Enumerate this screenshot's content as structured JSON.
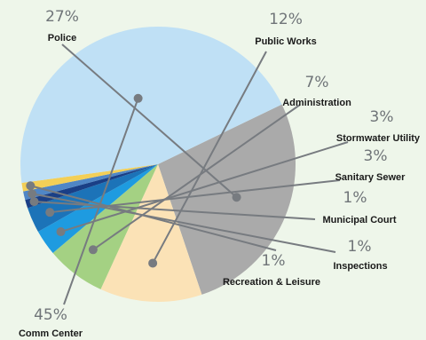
{
  "chart_data": {
    "type": "pie",
    "title": "",
    "slices": [
      {
        "label": "Police",
        "pct_label": "27%",
        "value": 27,
        "color": "#aaaaaa"
      },
      {
        "label": "Public Works",
        "pct_label": "12%",
        "value": 12,
        "color": "#fbe2b6"
      },
      {
        "label": "Administration",
        "pct_label": "7%",
        "value": 7,
        "color": "#a4d183"
      },
      {
        "label": "Stormwater Utility",
        "pct_label": "3%",
        "value": 3,
        "color": "#1e9be0"
      },
      {
        "label": "Sanitary Sewer",
        "pct_label": "3%",
        "value": 3,
        "color": "#1c73b8"
      },
      {
        "label": "Municipal Court",
        "pct_label": "1%",
        "value": 1,
        "color": "#1a3f86"
      },
      {
        "label": "Inspections",
        "pct_label": "1%",
        "value": 1,
        "color": "#4f86c6"
      },
      {
        "label": "Recreation & Leisure",
        "pct_label": "1%",
        "value": 1,
        "color": "#f3cf57"
      },
      {
        "label": "Comm Center",
        "pct_label": "45%",
        "value": 45,
        "color": "#bfe0f5"
      }
    ]
  }
}
